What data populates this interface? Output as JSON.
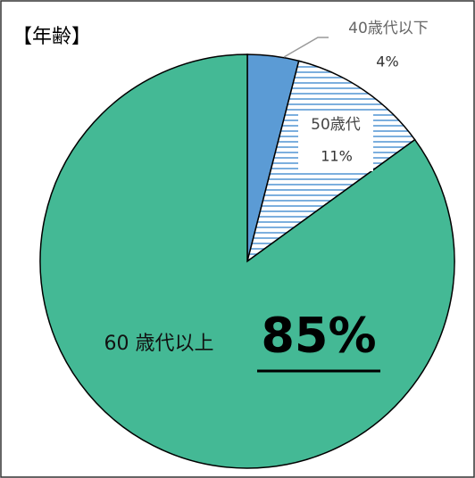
{
  "chart_data": {
    "type": "pie",
    "title": "【年齢】",
    "categories": [
      "40歳代以下",
      "50歳代",
      "60 歳代以上"
    ],
    "values": [
      4,
      11,
      85
    ],
    "value_labels": [
      "4%",
      "11%",
      "85%"
    ],
    "colors": [
      "#5b9bd5",
      "#5b9bd5",
      "#44b995"
    ],
    "hatch": [
      false,
      true,
      false
    ]
  }
}
